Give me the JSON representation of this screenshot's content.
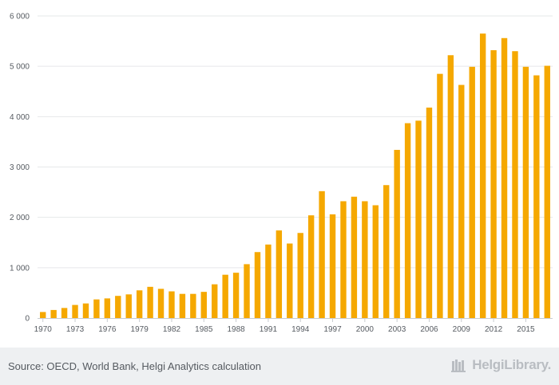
{
  "chart_data": {
    "type": "bar",
    "title": "",
    "xlabel": "",
    "ylabel": "",
    "ylim": [
      0,
      6000
    ],
    "y_ticks": [
      0,
      1000,
      2000,
      3000,
      4000,
      5000,
      6000
    ],
    "y_tick_labels": [
      "0",
      "1 000",
      "2 000",
      "3 000",
      "4 000",
      "5 000",
      "6 000"
    ],
    "x_tick_labels": [
      "1970",
      "1973",
      "1976",
      "1979",
      "1982",
      "1985",
      "1988",
      "1991",
      "1994",
      "1997",
      "2000",
      "2003",
      "2006",
      "2009",
      "2012",
      "2015"
    ],
    "grid": true,
    "bar_color": "#f5a800",
    "categories": [
      "1970",
      "1971",
      "1972",
      "1973",
      "1974",
      "1975",
      "1976",
      "1977",
      "1978",
      "1979",
      "1980",
      "1981",
      "1982",
      "1983",
      "1984",
      "1985",
      "1986",
      "1987",
      "1988",
      "1989",
      "1990",
      "1991",
      "1992",
      "1993",
      "1994",
      "1995",
      "1996",
      "1997",
      "1998",
      "1999",
      "2000",
      "2001",
      "2002",
      "2003",
      "2004",
      "2005",
      "2006",
      "2007",
      "2008",
      "2009",
      "2010",
      "2011",
      "2012",
      "2013",
      "2014",
      "2015",
      "2016",
      "2017"
    ],
    "values": [
      120,
      160,
      200,
      260,
      290,
      370,
      390,
      440,
      470,
      550,
      620,
      580,
      530,
      480,
      480,
      520,
      670,
      860,
      900,
      1070,
      1310,
      1460,
      1740,
      1480,
      1690,
      2040,
      2520,
      2060,
      2320,
      2410,
      2320,
      2240,
      2640,
      3340,
      3870,
      3920,
      4180,
      4850,
      5220,
      4630,
      4990,
      5650,
      5320,
      5560,
      5300,
      4990,
      4820,
      5010
    ]
  },
  "footer": {
    "source_text": "Source: OECD, World Bank, Helgi Analytics calculation",
    "brand_text": "HelgiLibrary.",
    "brand_icon": "bookshelf-icon"
  }
}
